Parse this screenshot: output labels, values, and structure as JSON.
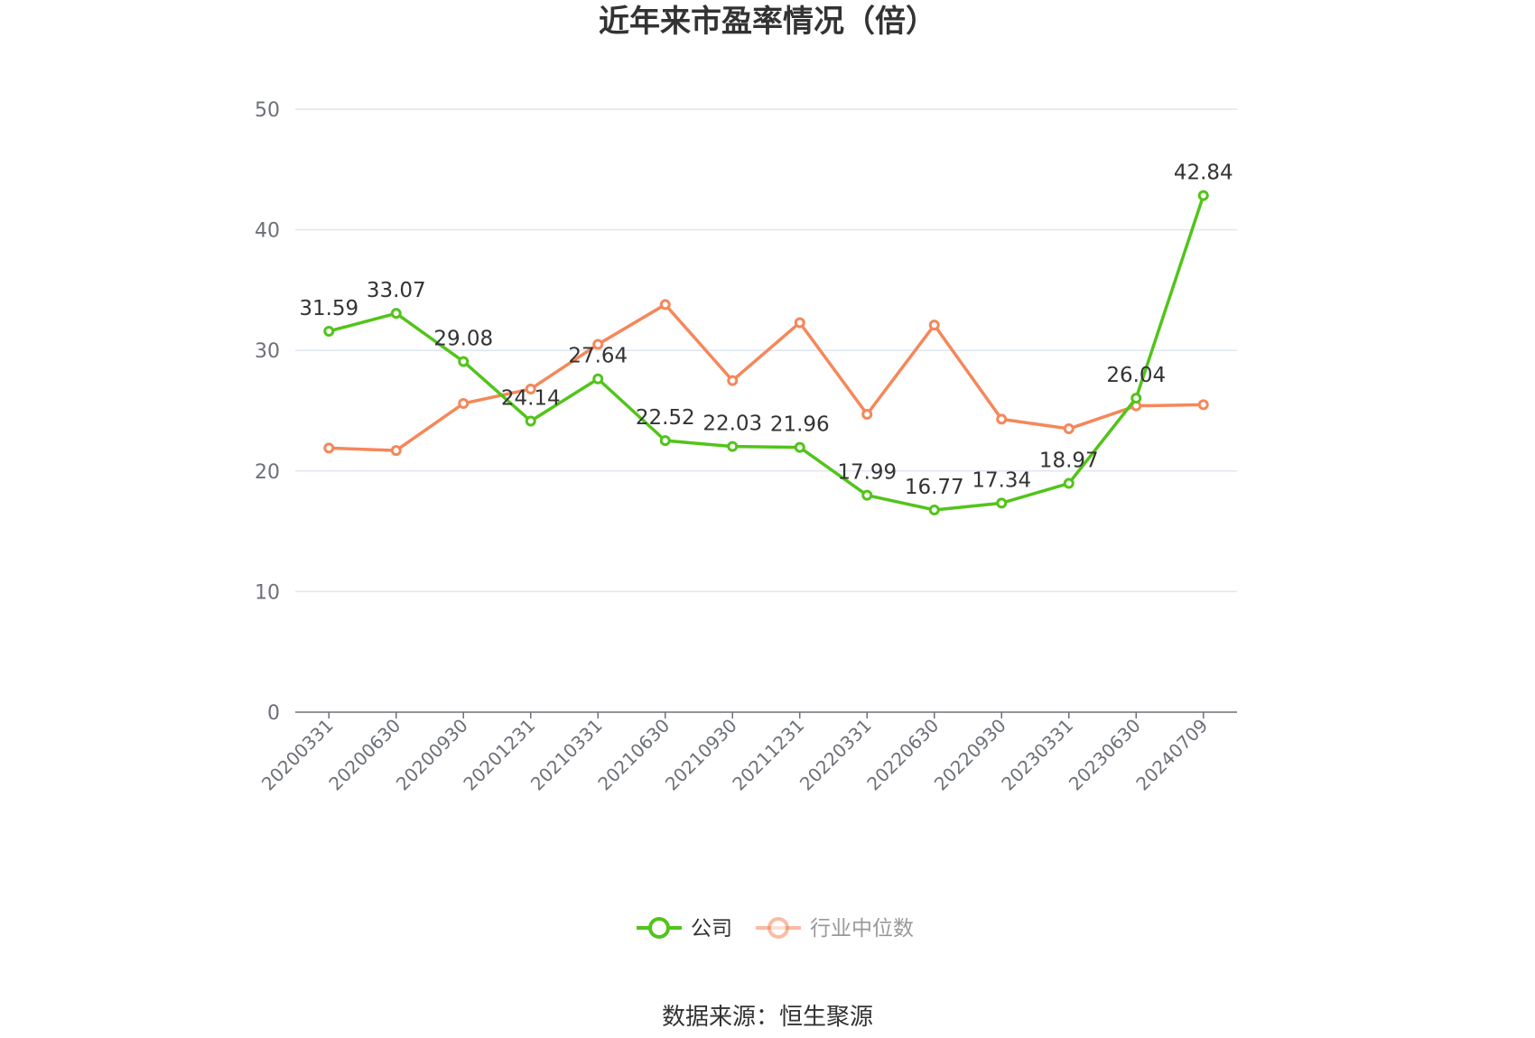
{
  "chart_data": {
    "type": "line",
    "title": "近年来市盈率情况（倍）",
    "categories": [
      "20200331",
      "20200630",
      "20200930",
      "20201231",
      "20210331",
      "20210630",
      "20210930",
      "20211231",
      "20220331",
      "20220630",
      "20220930",
      "20230331",
      "20230630",
      "20240709"
    ],
    "series": [
      {
        "name": "公司",
        "color": "#52c41a",
        "values": [
          31.59,
          33.07,
          29.08,
          24.14,
          27.64,
          22.52,
          22.03,
          21.96,
          17.99,
          16.77,
          17.34,
          18.97,
          26.04,
          42.84
        ],
        "labels": [
          "31.59",
          "33.07",
          "29.08",
          "24.14",
          "27.64",
          "22.52",
          "22.03",
          "21.96",
          "17.99",
          "16.77",
          "17.34",
          "18.97",
          "26.04",
          "42.84"
        ]
      },
      {
        "name": "行业中位数",
        "color": "#f5875a",
        "values": [
          21.9,
          21.7,
          25.6,
          26.8,
          30.5,
          33.8,
          27.5,
          32.3,
          24.7,
          32.1,
          24.3,
          23.5,
          25.4,
          25.5
        ]
      }
    ],
    "yticks": [
      "0",
      "10",
      "20",
      "30",
      "40",
      "50"
    ],
    "ylim": [
      0,
      50
    ],
    "grid": true,
    "legend_position": "bottom",
    "legend_inactive_text_color": "#999999",
    "source": "数据来源：恒生聚源"
  }
}
